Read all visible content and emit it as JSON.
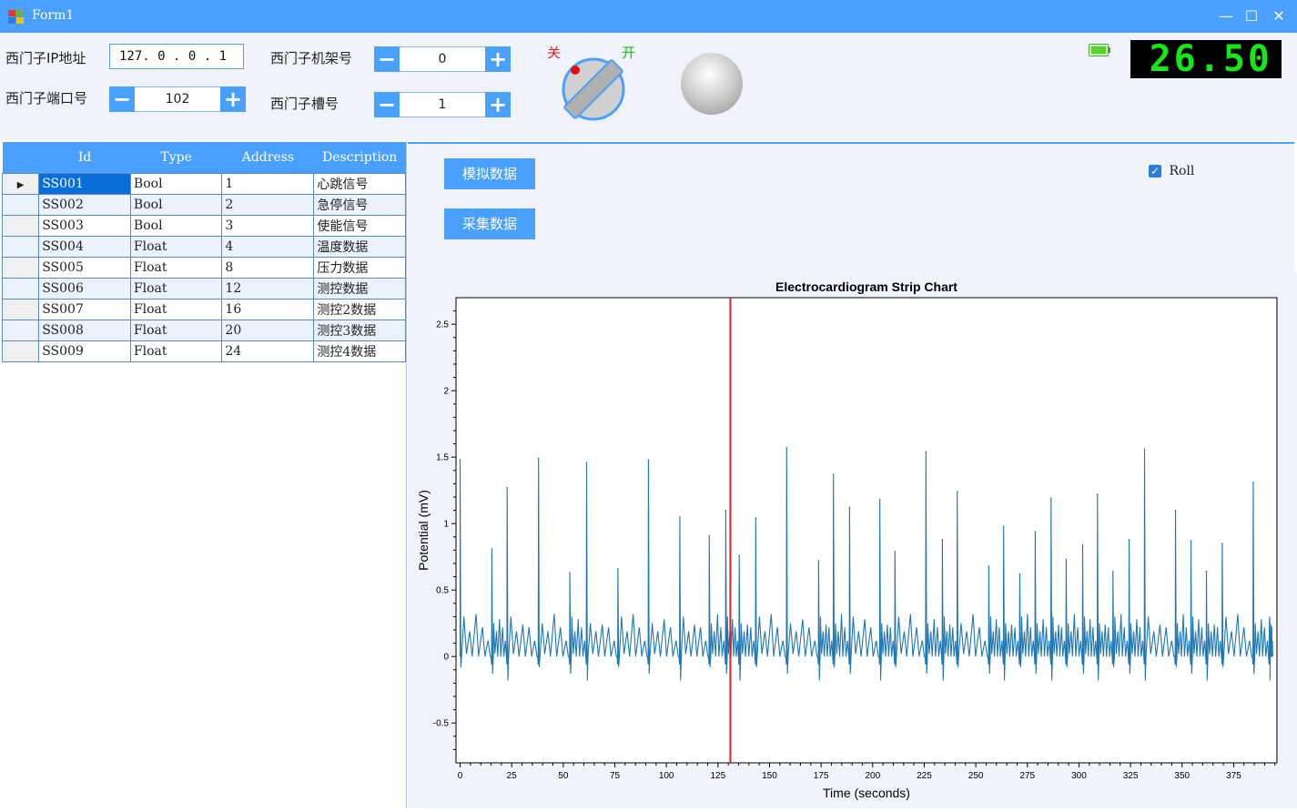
{
  "window": {
    "title": "Form1",
    "minimize": "—",
    "maximize": "☐",
    "close": "✕"
  },
  "config": {
    "ip_label": "西门子IP地址",
    "ip_value": "127. 0 . 0 . 1",
    "port_label": "西门子端口号",
    "port_value": "102",
    "rack_label": "西门子机架号",
    "rack_value": "0",
    "slot_label": "西门子槽号",
    "slot_value": "1",
    "minus": "−",
    "plus": "+"
  },
  "switch": {
    "off_label": "关",
    "on_label": "开"
  },
  "lcd": {
    "value": "26.50"
  },
  "table": {
    "columns": [
      "Id",
      "Type",
      "Address",
      "Description"
    ],
    "rows": [
      [
        "SS001",
        "Bool",
        "1",
        "心跳信号"
      ],
      [
        "SS002",
        "Bool",
        "2",
        "急停信号"
      ],
      [
        "SS003",
        "Bool",
        "3",
        "使能信号"
      ],
      [
        "SS004",
        "Float",
        "4",
        "温度数据"
      ],
      [
        "SS005",
        "Float",
        "8",
        "压力数据"
      ],
      [
        "SS006",
        "Float",
        "12",
        "测控数据"
      ],
      [
        "SS007",
        "Float",
        "16",
        "测控2数据"
      ],
      [
        "SS008",
        "Float",
        "20",
        "测控3数据"
      ],
      [
        "SS009",
        "Float",
        "24",
        "测控4数据"
      ]
    ]
  },
  "actions": {
    "simulate": "模拟数据",
    "collect": "采集数据",
    "roll": "Roll"
  },
  "colors": {
    "accent": "#4aa0ff",
    "series": "#1f77b4",
    "cursor": "#e02020",
    "lcd": "#19e619"
  },
  "chart_data": {
    "type": "line",
    "title": "Electrocardiogram Strip Chart",
    "xlabel": "Time (seconds)",
    "ylabel": "Potential (mV)",
    "xlim": [
      -2,
      396
    ],
    "ylim": [
      -0.8,
      2.7
    ],
    "xticks": [
      0,
      25,
      50,
      75,
      100,
      125,
      150,
      175,
      200,
      225,
      250,
      275,
      300,
      325,
      350,
      375
    ],
    "yticks": [
      -0.5,
      0,
      0.5,
      1,
      1.5,
      2,
      2.5
    ],
    "cursor_x": 131,
    "beats": [
      {
        "t": 0,
        "r": 1.48
      },
      {
        "t": 15.4,
        "r": 0.81
      },
      {
        "t": 22.8,
        "r": 1.27
      },
      {
        "t": 38,
        "r": 1.49
      },
      {
        "t": 53.2,
        "r": 0.63
      },
      {
        "t": 61.3,
        "r": 1.46
      },
      {
        "t": 76.5,
        "r": 0.66
      },
      {
        "t": 91.3,
        "r": 1.48
      },
      {
        "t": 106.5,
        "r": 1.05
      },
      {
        "t": 120.8,
        "r": 0.91
      },
      {
        "t": 128.8,
        "r": 1.1
      },
      {
        "t": 135.3,
        "r": 0.76
      },
      {
        "t": 143.3,
        "r": 1.04
      },
      {
        "t": 158.3,
        "r": 1.57
      },
      {
        "t": 173.8,
        "r": 0.72
      },
      {
        "t": 181,
        "r": 1.37
      },
      {
        "t": 188.8,
        "r": 1.12
      },
      {
        "t": 203.5,
        "r": 1.18
      },
      {
        "t": 210.8,
        "r": 0.79
      },
      {
        "t": 225.8,
        "r": 1.54
      },
      {
        "t": 233.8,
        "r": 0.88
      },
      {
        "t": 241,
        "r": 1.24
      },
      {
        "t": 256.3,
        "r": 0.68
      },
      {
        "t": 263.5,
        "r": 0.98
      },
      {
        "t": 271.3,
        "r": 0.62
      },
      {
        "t": 278.8,
        "r": 0.94
      },
      {
        "t": 286.5,
        "r": 1.19
      },
      {
        "t": 293.8,
        "r": 0.73
      },
      {
        "t": 301.8,
        "r": 0.84
      },
      {
        "t": 309,
        "r": 1.22
      },
      {
        "t": 316.5,
        "r": 0.64
      },
      {
        "t": 324.3,
        "r": 0.88
      },
      {
        "t": 331.8,
        "r": 1.56
      },
      {
        "t": 346.8,
        "r": 1.1
      },
      {
        "t": 354.3,
        "r": 0.87
      },
      {
        "t": 361.8,
        "r": 0.64
      },
      {
        "t": 369.5,
        "r": 0.85
      },
      {
        "t": 384.5,
        "r": 1.31
      },
      {
        "t": 392.3,
        "r": 0.25
      }
    ]
  }
}
